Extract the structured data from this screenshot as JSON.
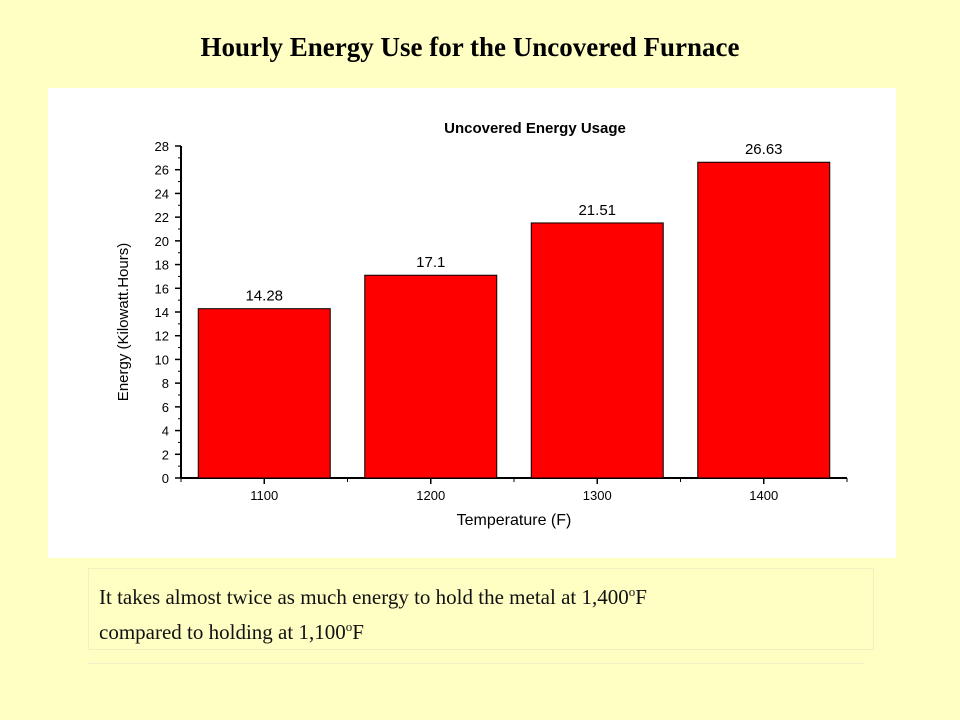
{
  "slide": {
    "title": "Hourly Energy Use for the Uncovered Furnace",
    "caption_line1_a": "It takes almost twice as much energy to hold the metal at 1,400",
    "caption_line1_sup": "o",
    "caption_line1_b": "F",
    "caption_line2_a": "compared to holding at 1,100",
    "caption_line2_sup": "o",
    "caption_line2_b": "F"
  },
  "colors": {
    "background": "#ffffc4",
    "bar_fill": "#ff0000",
    "bar_stroke": "#000000"
  },
  "chart_data": {
    "type": "bar",
    "title": "Uncovered Energy Usage",
    "xlabel": "Temperature (F)",
    "ylabel": "Energy (Kilowatt.Hours)",
    "categories": [
      "1100",
      "1200",
      "1300",
      "1400"
    ],
    "values": [
      14.28,
      17.1,
      21.51,
      26.63
    ],
    "value_labels": [
      "14.28",
      "17.1",
      "21.51",
      "26.63"
    ],
    "ylim": [
      0,
      28
    ],
    "yticks": [
      "0",
      "2",
      "4",
      "6",
      "8",
      "10",
      "12",
      "14",
      "16",
      "18",
      "20",
      "22",
      "24",
      "26",
      "28"
    ],
    "grid": false,
    "legend": "none"
  }
}
